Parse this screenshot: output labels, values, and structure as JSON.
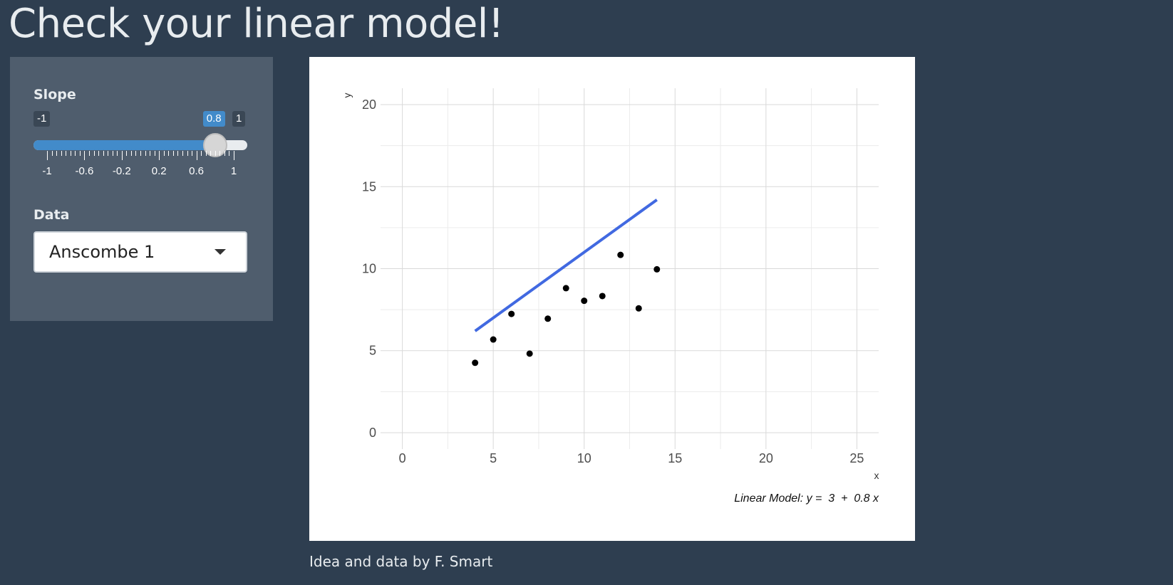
{
  "page": {
    "title": "Check your linear model!",
    "footer": "Idea and data by F. Smart"
  },
  "sidebar": {
    "slope": {
      "label": "Slope",
      "min_label": "-1",
      "max_label": "1",
      "min": -1,
      "max": 1,
      "value": 0.8,
      "value_label": "0.8",
      "grid_labels": [
        "-1",
        "-0.6",
        "-0.2",
        "0.2",
        "0.6",
        "1"
      ]
    },
    "data": {
      "label": "Data",
      "selected": "Anscombe 1"
    }
  },
  "colors": {
    "background": "#2e3e50",
    "sidebar": "#4f5d6d",
    "accent": "#428bca",
    "line": "#4169e1"
  },
  "icons": {
    "select_caret": "caret-down-icon"
  },
  "chart_data": {
    "type": "scatter",
    "xlabel": "x",
    "ylabel": "y",
    "xlim": [
      -1.2,
      26.2
    ],
    "ylim": [
      -1,
      21
    ],
    "x_ticks": [
      0,
      5,
      10,
      15,
      20,
      25
    ],
    "y_ticks": [
      0,
      5,
      10,
      15,
      20
    ],
    "x_tick_labels": [
      "0",
      "5",
      "10",
      "15",
      "20",
      "25"
    ],
    "y_tick_labels": [
      "0",
      "5",
      "10",
      "15",
      "20"
    ],
    "grid": true,
    "points": [
      {
        "x": 10,
        "y": 8.04
      },
      {
        "x": 8,
        "y": 6.95
      },
      {
        "x": 13,
        "y": 7.58
      },
      {
        "x": 9,
        "y": 8.81
      },
      {
        "x": 11,
        "y": 8.33
      },
      {
        "x": 14,
        "y": 9.96
      },
      {
        "x": 6,
        "y": 7.24
      },
      {
        "x": 4,
        "y": 4.26
      },
      {
        "x": 12,
        "y": 10.84
      },
      {
        "x": 7,
        "y": 4.82
      },
      {
        "x": 5,
        "y": 5.68
      }
    ],
    "model": {
      "intercept": 3,
      "slope": 0.8,
      "x_range": [
        4,
        14
      ]
    },
    "annotation": "Linear Model: y =  3  +  0.8 x"
  }
}
